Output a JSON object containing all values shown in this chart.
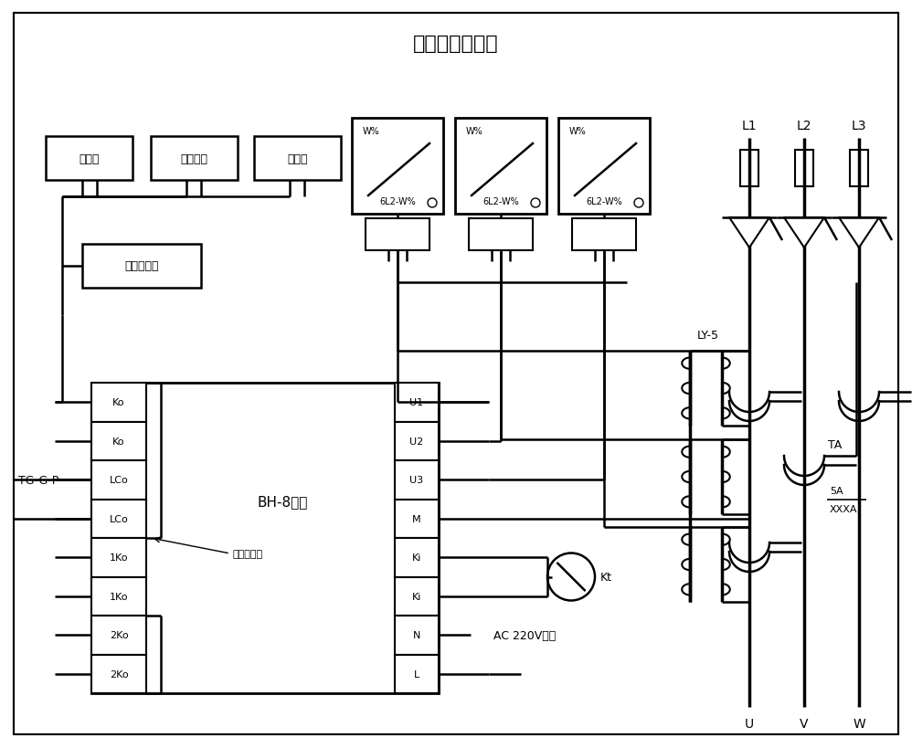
{
  "title": "典型应用接线图",
  "title_fontsize": 16,
  "bg_color": "#ffffff",
  "line_color": "#000000",
  "lw": 1.8,
  "lamp_labels": [
    "过热灯",
    "过电流灯",
    "电源灯"
  ],
  "meter_label_top": "W%",
  "meter_label_bot": "6L2-W%",
  "bh8_left_terminals": [
    "Ko",
    "Ko",
    "LCo",
    "LCo",
    "1Ko",
    "1Ko",
    "2Ko",
    "2Ko"
  ],
  "bh8_right_terminals": [
    "U1",
    "U2",
    "U3",
    "M",
    "Ki",
    "Ki",
    "N",
    "L"
  ],
  "bh8_label": "BH-8背面",
  "tg_label": "TG-G-P",
  "alarm_label": "声光报警器",
  "inner_label": "内部短接线",
  "ly5_label": "LY-5",
  "ta_label": "TA",
  "ta_ratio_top": "5A",
  "ta_ratio_bot": "XXXA",
  "ac_label": "AC 220V电源",
  "kt_label": "Kt",
  "phase_labels": [
    "L1",
    "L2",
    "L3"
  ],
  "phase_bottom": [
    "U",
    "V",
    "W"
  ]
}
